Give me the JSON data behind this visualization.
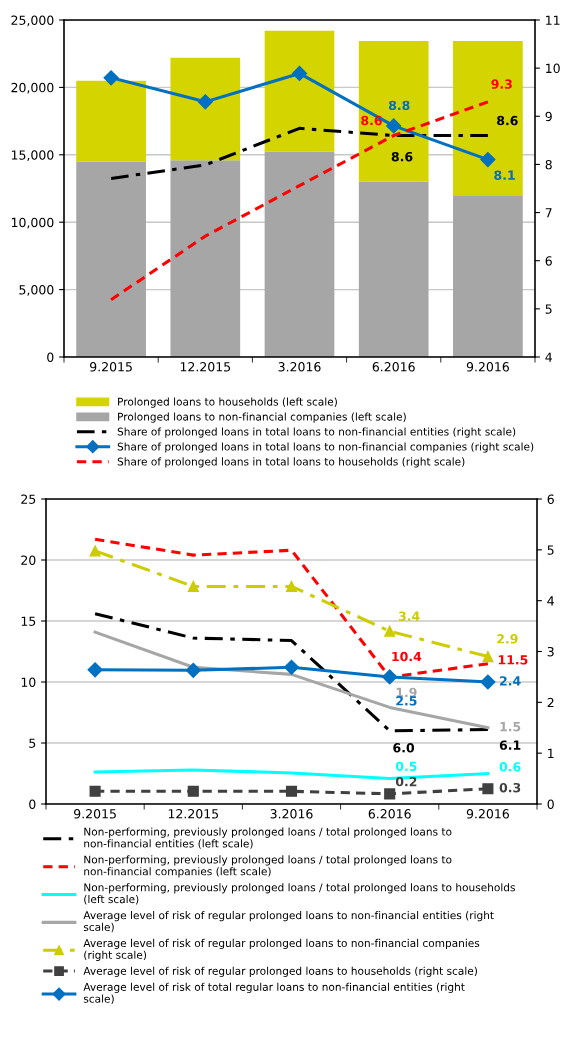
{
  "chart_data": [
    {
      "type": "bar",
      "stacked": true,
      "categories": [
        "9.2015",
        "12.2015",
        "3.2016",
        "6.2016",
        "9.2016"
      ],
      "series": [
        {
          "name": "Prolonged loans to non-financial companies (left scale)",
          "color": "#a6a6a6",
          "values": [
            14500,
            14600,
            15250,
            13000,
            11950
          ]
        },
        {
          "name": "Prolonged loans to households (left scale)",
          "color": "#d4d400",
          "values": [
            6000,
            7600,
            8950,
            10450,
            11500
          ]
        },
        {
          "type": "line",
          "axis": "y2",
          "name": "Share of prolonged loans in total loans to non-financial entities (right scale)",
          "color": "#000000",
          "line_style": "dashdot",
          "values": [
            7.71,
            7.99,
            8.75,
            8.6,
            8.6
          ],
          "value_labels": [
            null,
            null,
            null,
            "8.6",
            "8.6"
          ]
        },
        {
          "type": "line",
          "axis": "y2",
          "name": "Share of prolonged loans in total loans to non-financial companies (right scale)",
          "color": "#0070c0",
          "line_style": "solid",
          "marker": "diamond",
          "values": [
            9.8,
            9.3,
            9.89,
            8.8,
            8.1
          ],
          "value_labels": [
            null,
            null,
            null,
            "8.8",
            "8.1"
          ]
        },
        {
          "type": "line",
          "axis": "y2",
          "name": "Share of prolonged loans in total loans to households (right scale)",
          "color": "#ff0000",
          "line_style": "dashed",
          "values": [
            5.19,
            6.51,
            7.56,
            8.6,
            9.3
          ],
          "value_labels": [
            null,
            null,
            null,
            "8.6",
            "9.3"
          ]
        }
      ],
      "ylim": [
        0,
        25000
      ],
      "yticks": [
        0,
        {
          "value": 5000,
          "label": "5,000"
        },
        {
          "value": 10000,
          "label": "10,000"
        },
        {
          "value": 15000,
          "label": "15,000"
        },
        {
          "value": 20000,
          "label": "20,000"
        },
        {
          "value": 25000,
          "label": "25,000"
        }
      ],
      "y2lim": [
        4,
        11
      ],
      "y2ticks": [
        4,
        5,
        6,
        7,
        8,
        9,
        10,
        11
      ],
      "grid": "y",
      "legend": "bottom"
    },
    {
      "type": "line",
      "categories": [
        "9.2015",
        "12.2015",
        "3.2016",
        "6.2016",
        "9.2016"
      ],
      "series": [
        {
          "name": "Non-performing, previously prolonged loans / total prolonged loans to non-financial entities (left scale)",
          "color": "#000000",
          "line_style": "dashdot",
          "values": [
            15.6,
            13.6,
            13.4,
            6.0,
            6.1
          ],
          "value_labels": [
            null,
            null,
            null,
            "6.0",
            "6.1"
          ]
        },
        {
          "name": "Non-performing, previously prolonged loans / total prolonged loans to non-financial companies (left scale)",
          "color": "#ff0000",
          "line_style": "dashed",
          "values": [
            21.7,
            20.4,
            20.8,
            10.4,
            11.5
          ],
          "value_labels": [
            null,
            null,
            null,
            "10.4",
            "11.5"
          ]
        },
        {
          "name": "Non-performing, previously prolonged loans / total prolonged loans to households (left scale)",
          "axis": "y2",
          "color": "#00ffff",
          "line_style": "solid",
          "values": [
            0.63,
            0.67,
            0.61,
            0.5,
            0.6
          ],
          "value_labels": [
            null,
            null,
            null,
            "0.5",
            "0.6"
          ]
        },
        {
          "name": "Average level of risk of regular prolonged loans to non-financial entities (right scale)",
          "axis": "y2",
          "color": "#a6a6a6",
          "line_style": "solid",
          "values": [
            3.38,
            2.69,
            2.55,
            1.9,
            1.5
          ],
          "value_labels": [
            null,
            null,
            null,
            "1.9",
            "1.5"
          ]
        },
        {
          "name": "Average level of risk of regular prolonged loans to non-financial companies (right scale)",
          "axis": "y2",
          "color": "#cccc00",
          "line_style": "dashdot",
          "marker": "triangle",
          "values": [
            4.98,
            4.28,
            4.28,
            3.4,
            2.9
          ],
          "value_labels": [
            null,
            null,
            null,
            "3.4",
            "2.9"
          ]
        },
        {
          "name": "Average level of risk of regular prolonged loans to households (right scale)",
          "axis": "y2",
          "color": "#404040",
          "line_style": "dashed",
          "marker": "square",
          "values": [
            0.25,
            0.25,
            0.25,
            0.2,
            0.3
          ],
          "value_labels": [
            null,
            null,
            null,
            "0.2",
            "0.3"
          ]
        },
        {
          "name": "Average level of risk of total regular loans to non-financial entities (right scale)",
          "axis": "y2",
          "color": "#0070c0",
          "line_style": "solid",
          "marker": "diamond",
          "values": [
            2.64,
            2.63,
            2.69,
            2.5,
            2.4
          ],
          "value_labels": [
            null,
            null,
            null,
            "2.5",
            "2.4"
          ]
        }
      ],
      "ylim": [
        0,
        25
      ],
      "yticks": [
        0,
        5,
        10,
        15,
        20,
        25
      ],
      "y2lim": [
        0,
        6
      ],
      "y2ticks": [
        0,
        1,
        2,
        3,
        4,
        5,
        6
      ],
      "grid": "y",
      "legend": "bottom"
    }
  ]
}
